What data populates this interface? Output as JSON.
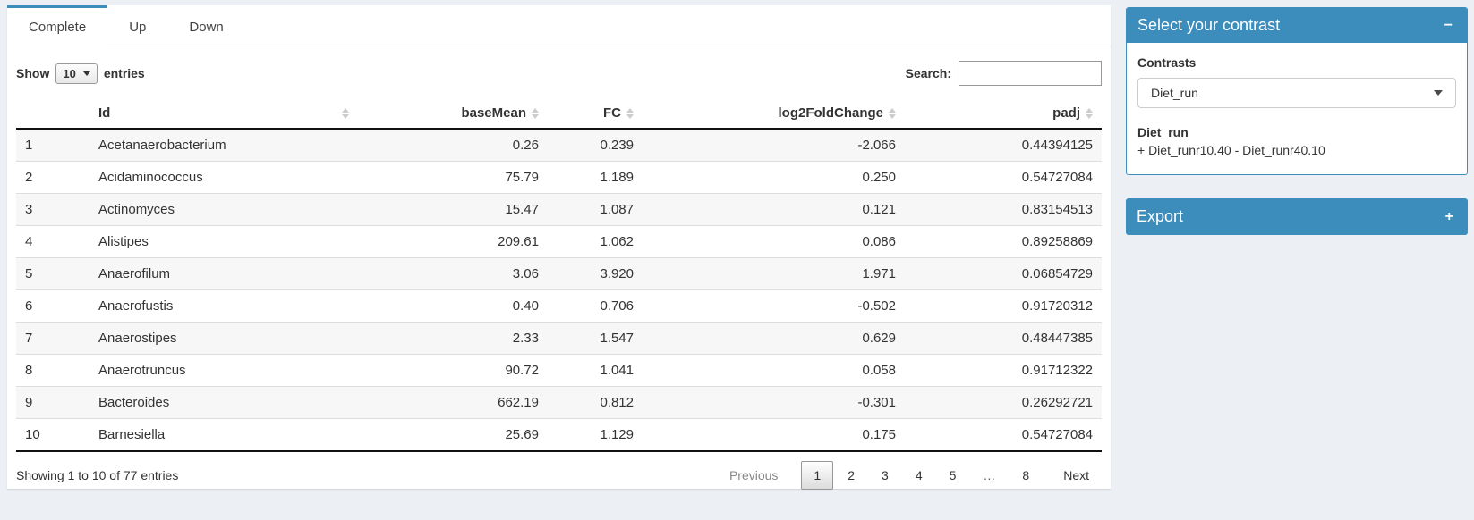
{
  "colors": {
    "primary": "#3c8dbc",
    "page_bg": "#ecf0f5"
  },
  "tabs": {
    "items": [
      {
        "label": "Complete",
        "active": true
      },
      {
        "label": "Up",
        "active": false
      },
      {
        "label": "Down",
        "active": false
      }
    ]
  },
  "controls": {
    "show_label": "Show",
    "page_length": "10",
    "entries_label": "entries",
    "search_label": "Search:",
    "search_value": ""
  },
  "table": {
    "columns": [
      "",
      "Id",
      "baseMean",
      "FC",
      "log2FoldChange",
      "padj"
    ],
    "rows": [
      [
        "1",
        "Acetanaerobacterium",
        "0.26",
        "0.239",
        "-2.066",
        "0.44394125"
      ],
      [
        "2",
        "Acidaminococcus",
        "75.79",
        "1.189",
        "0.250",
        "0.54727084"
      ],
      [
        "3",
        "Actinomyces",
        "15.47",
        "1.087",
        "0.121",
        "0.83154513"
      ],
      [
        "4",
        "Alistipes",
        "209.61",
        "1.062",
        "0.086",
        "0.89258869"
      ],
      [
        "5",
        "Anaerofilum",
        "3.06",
        "3.920",
        "1.971",
        "0.06854729"
      ],
      [
        "6",
        "Anaerofustis",
        "0.40",
        "0.706",
        "-0.502",
        "0.91720312"
      ],
      [
        "7",
        "Anaerostipes",
        "2.33",
        "1.547",
        "0.629",
        "0.48447385"
      ],
      [
        "8",
        "Anaerotruncus",
        "90.72",
        "1.041",
        "0.058",
        "0.91712322"
      ],
      [
        "9",
        "Bacteroides",
        "662.19",
        "0.812",
        "-0.301",
        "0.26292721"
      ],
      [
        "10",
        "Barnesiella",
        "25.69",
        "1.129",
        "0.175",
        "0.54727084"
      ]
    ]
  },
  "footer": {
    "info": "Showing 1 to 10 of 77 entries",
    "pagination": {
      "previous": "Previous",
      "pages": [
        "1",
        "2",
        "3",
        "4",
        "5",
        "…",
        "8"
      ],
      "active_page": "1",
      "next": "Next"
    }
  },
  "contrast_panel": {
    "title": "Select your contrast",
    "collapse_icon": "−",
    "contrasts_label": "Contrasts",
    "selected_contrast": "Diet_run",
    "contrast_name": "Diet_run",
    "contrast_formula": "+ Diet_runr10.40 - Diet_runr40.10"
  },
  "export_panel": {
    "title": "Export",
    "expand_icon": "+"
  }
}
